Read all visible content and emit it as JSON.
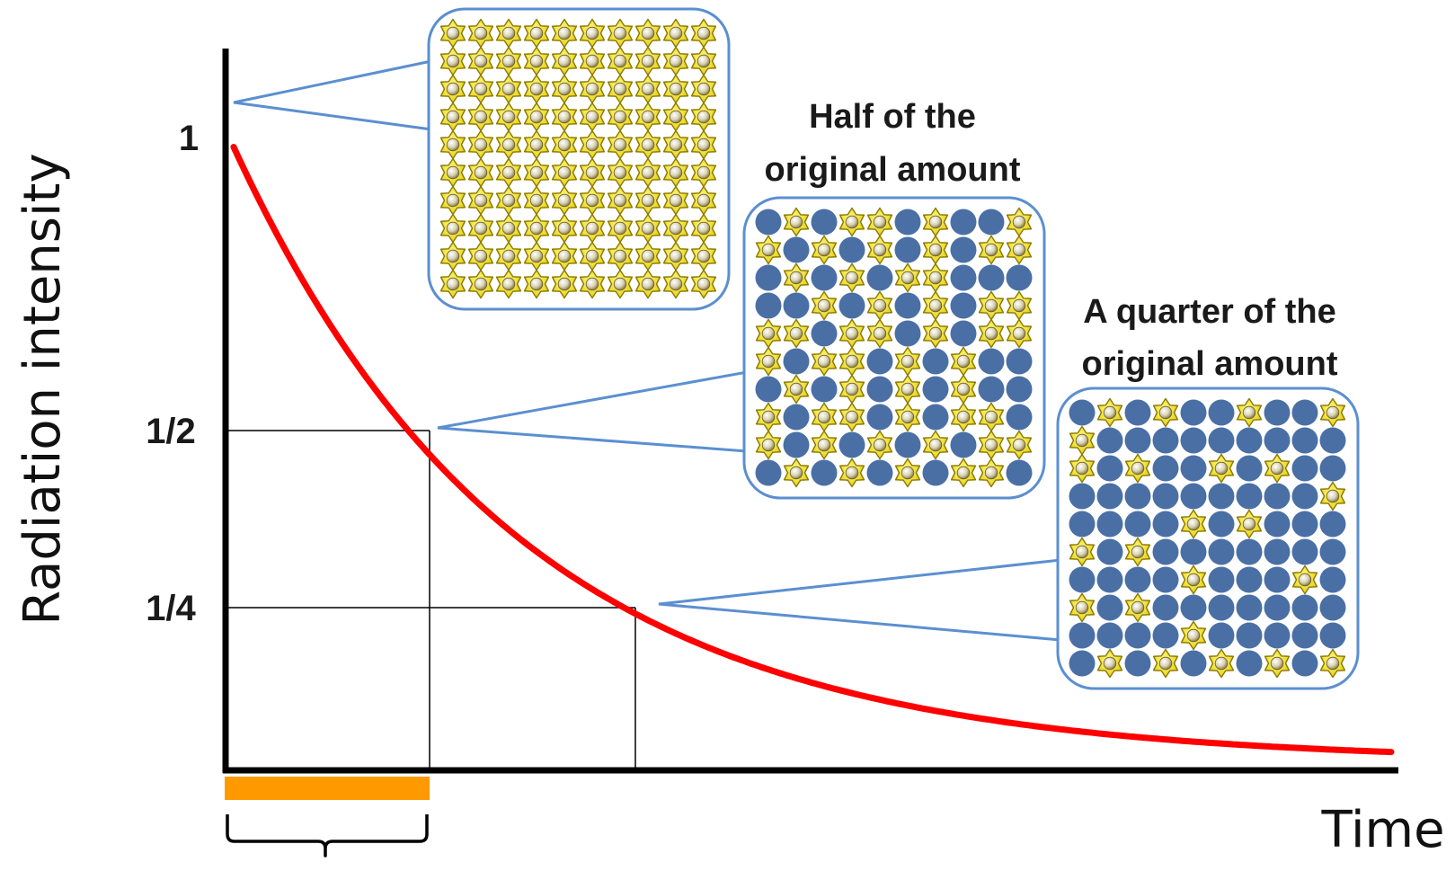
{
  "axes": {
    "y_label": "Radiation intensity",
    "x_label": "Time",
    "y_ticks": [
      "1",
      "1/2",
      "1/4"
    ]
  },
  "callouts": [
    {
      "id": "full",
      "fraction": 1,
      "label_lines": []
    },
    {
      "id": "half",
      "fraction": 0.5,
      "label_lines": [
        "Half of the",
        "original amount"
      ]
    },
    {
      "id": "quarter",
      "fraction": 0.25,
      "label_lines": [
        "A quarter of the",
        "original amount"
      ]
    }
  ],
  "grid_states": {
    "full": [
      "SSSSSSSSSS",
      "SSSSSSSSSS",
      "SSSSSSSSSS",
      "SSSSSSSSSS",
      "SSSSSSSSSS",
      "SSSSSSSSSS",
      "SSSSSSSSSS",
      "SSSSSSSSSS",
      "SSSSSSSSSS",
      "SSSSSSSSSS"
    ],
    "half": [
      "CSCSSCSCCS",
      "SCSCSCSCSS",
      "CSCSCSSCCC",
      "CCSCSCSCSS",
      "SSCSSCSCSS",
      "SCSSCSCSCC",
      "CSCSCSCSCC",
      "SCSSCSCSSC",
      "SCSCSCSCSS",
      "CSCSCSCSSC"
    ],
    "quarter": [
      "CSCSCCSCCS",
      "SCCCCCCCCC",
      "SCSCCSCSCC",
      "CCCCCCCCCS",
      "CCCCSCSCCC",
      "SCSCCCCCCC",
      "CCCCSCCCSC",
      "SCSCCCCCCC",
      "CCCCSCCCCC",
      "CSCSCSCSCS"
    ]
  },
  "colors": {
    "curve": "#ff0000",
    "callout_border": "#5b8fd1",
    "callout_fill": "#ffffff",
    "decayed_atom": "#4a6fa5",
    "radioactive_star": "#f2e000",
    "star_outline": "#8a7a00",
    "half_life_bar": "#ff9900",
    "axis": "#000000"
  }
}
